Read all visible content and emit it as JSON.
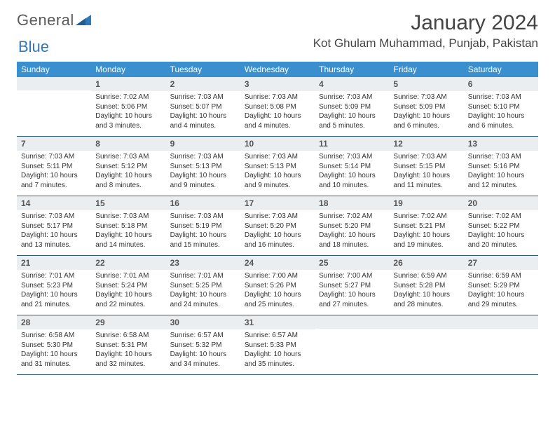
{
  "logo": {
    "text1": "General",
    "text2": "Blue"
  },
  "title": "January 2024",
  "location": "Kot Ghulam Muhammad, Punjab, Pakistan",
  "colors": {
    "header_bg": "#3a8fce",
    "header_text": "#ffffff",
    "daynum_bg": "#ebeef1",
    "rule": "#2a5f8a",
    "logo_blue": "#2f79b9",
    "text": "#333333"
  },
  "daysOfWeek": [
    "Sunday",
    "Monday",
    "Tuesday",
    "Wednesday",
    "Thursday",
    "Friday",
    "Saturday"
  ],
  "weeks": [
    [
      {
        "n": "",
        "sr": "",
        "ss": "",
        "dl": ""
      },
      {
        "n": "1",
        "sr": "Sunrise: 7:02 AM",
        "ss": "Sunset: 5:06 PM",
        "dl": "Daylight: 10 hours and 3 minutes."
      },
      {
        "n": "2",
        "sr": "Sunrise: 7:03 AM",
        "ss": "Sunset: 5:07 PM",
        "dl": "Daylight: 10 hours and 4 minutes."
      },
      {
        "n": "3",
        "sr": "Sunrise: 7:03 AM",
        "ss": "Sunset: 5:08 PM",
        "dl": "Daylight: 10 hours and 4 minutes."
      },
      {
        "n": "4",
        "sr": "Sunrise: 7:03 AM",
        "ss": "Sunset: 5:09 PM",
        "dl": "Daylight: 10 hours and 5 minutes."
      },
      {
        "n": "5",
        "sr": "Sunrise: 7:03 AM",
        "ss": "Sunset: 5:09 PM",
        "dl": "Daylight: 10 hours and 6 minutes."
      },
      {
        "n": "6",
        "sr": "Sunrise: 7:03 AM",
        "ss": "Sunset: 5:10 PM",
        "dl": "Daylight: 10 hours and 6 minutes."
      }
    ],
    [
      {
        "n": "7",
        "sr": "Sunrise: 7:03 AM",
        "ss": "Sunset: 5:11 PM",
        "dl": "Daylight: 10 hours and 7 minutes."
      },
      {
        "n": "8",
        "sr": "Sunrise: 7:03 AM",
        "ss": "Sunset: 5:12 PM",
        "dl": "Daylight: 10 hours and 8 minutes."
      },
      {
        "n": "9",
        "sr": "Sunrise: 7:03 AM",
        "ss": "Sunset: 5:13 PM",
        "dl": "Daylight: 10 hours and 9 minutes."
      },
      {
        "n": "10",
        "sr": "Sunrise: 7:03 AM",
        "ss": "Sunset: 5:13 PM",
        "dl": "Daylight: 10 hours and 9 minutes."
      },
      {
        "n": "11",
        "sr": "Sunrise: 7:03 AM",
        "ss": "Sunset: 5:14 PM",
        "dl": "Daylight: 10 hours and 10 minutes."
      },
      {
        "n": "12",
        "sr": "Sunrise: 7:03 AM",
        "ss": "Sunset: 5:15 PM",
        "dl": "Daylight: 10 hours and 11 minutes."
      },
      {
        "n": "13",
        "sr": "Sunrise: 7:03 AM",
        "ss": "Sunset: 5:16 PM",
        "dl": "Daylight: 10 hours and 12 minutes."
      }
    ],
    [
      {
        "n": "14",
        "sr": "Sunrise: 7:03 AM",
        "ss": "Sunset: 5:17 PM",
        "dl": "Daylight: 10 hours and 13 minutes."
      },
      {
        "n": "15",
        "sr": "Sunrise: 7:03 AM",
        "ss": "Sunset: 5:18 PM",
        "dl": "Daylight: 10 hours and 14 minutes."
      },
      {
        "n": "16",
        "sr": "Sunrise: 7:03 AM",
        "ss": "Sunset: 5:19 PM",
        "dl": "Daylight: 10 hours and 15 minutes."
      },
      {
        "n": "17",
        "sr": "Sunrise: 7:03 AM",
        "ss": "Sunset: 5:20 PM",
        "dl": "Daylight: 10 hours and 16 minutes."
      },
      {
        "n": "18",
        "sr": "Sunrise: 7:02 AM",
        "ss": "Sunset: 5:20 PM",
        "dl": "Daylight: 10 hours and 18 minutes."
      },
      {
        "n": "19",
        "sr": "Sunrise: 7:02 AM",
        "ss": "Sunset: 5:21 PM",
        "dl": "Daylight: 10 hours and 19 minutes."
      },
      {
        "n": "20",
        "sr": "Sunrise: 7:02 AM",
        "ss": "Sunset: 5:22 PM",
        "dl": "Daylight: 10 hours and 20 minutes."
      }
    ],
    [
      {
        "n": "21",
        "sr": "Sunrise: 7:01 AM",
        "ss": "Sunset: 5:23 PM",
        "dl": "Daylight: 10 hours and 21 minutes."
      },
      {
        "n": "22",
        "sr": "Sunrise: 7:01 AM",
        "ss": "Sunset: 5:24 PM",
        "dl": "Daylight: 10 hours and 22 minutes."
      },
      {
        "n": "23",
        "sr": "Sunrise: 7:01 AM",
        "ss": "Sunset: 5:25 PM",
        "dl": "Daylight: 10 hours and 24 minutes."
      },
      {
        "n": "24",
        "sr": "Sunrise: 7:00 AM",
        "ss": "Sunset: 5:26 PM",
        "dl": "Daylight: 10 hours and 25 minutes."
      },
      {
        "n": "25",
        "sr": "Sunrise: 7:00 AM",
        "ss": "Sunset: 5:27 PM",
        "dl": "Daylight: 10 hours and 27 minutes."
      },
      {
        "n": "26",
        "sr": "Sunrise: 6:59 AM",
        "ss": "Sunset: 5:28 PM",
        "dl": "Daylight: 10 hours and 28 minutes."
      },
      {
        "n": "27",
        "sr": "Sunrise: 6:59 AM",
        "ss": "Sunset: 5:29 PM",
        "dl": "Daylight: 10 hours and 29 minutes."
      }
    ],
    [
      {
        "n": "28",
        "sr": "Sunrise: 6:58 AM",
        "ss": "Sunset: 5:30 PM",
        "dl": "Daylight: 10 hours and 31 minutes."
      },
      {
        "n": "29",
        "sr": "Sunrise: 6:58 AM",
        "ss": "Sunset: 5:31 PM",
        "dl": "Daylight: 10 hours and 32 minutes."
      },
      {
        "n": "30",
        "sr": "Sunrise: 6:57 AM",
        "ss": "Sunset: 5:32 PM",
        "dl": "Daylight: 10 hours and 34 minutes."
      },
      {
        "n": "31",
        "sr": "Sunrise: 6:57 AM",
        "ss": "Sunset: 5:33 PM",
        "dl": "Daylight: 10 hours and 35 minutes."
      },
      {
        "n": "",
        "sr": "",
        "ss": "",
        "dl": ""
      },
      {
        "n": "",
        "sr": "",
        "ss": "",
        "dl": ""
      },
      {
        "n": "",
        "sr": "",
        "ss": "",
        "dl": ""
      }
    ]
  ]
}
